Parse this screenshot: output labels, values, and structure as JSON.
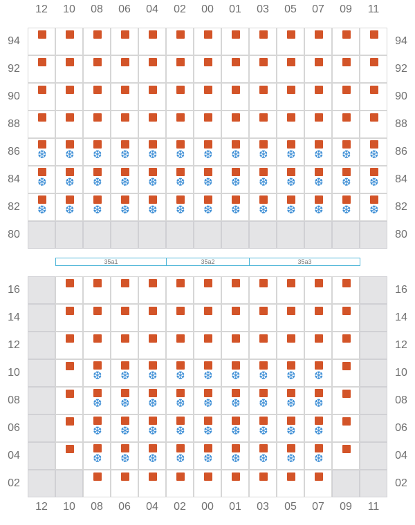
{
  "colors": {
    "seat": "#d35428",
    "snow": "#3e8fd6",
    "disabled_cell": "#e4e4e6",
    "zone_border": "#4fb6d8"
  },
  "icons": {
    "seat": "seat-marker-icon",
    "snow": "snowflake-icon"
  },
  "columns": [
    "12",
    "10",
    "08",
    "06",
    "04",
    "02",
    "00",
    "01",
    "03",
    "05",
    "07",
    "09",
    "11"
  ],
  "top_block": {
    "rows": [
      {
        "label": "94",
        "seats": "1111111111111",
        "snow": "0000000000000",
        "disabled": "0000000000000"
      },
      {
        "label": "92",
        "seats": "1111111111111",
        "snow": "0000000000000",
        "disabled": "0000000000000"
      },
      {
        "label": "90",
        "seats": "1111111111111",
        "snow": "0000000000000",
        "disabled": "0000000000000"
      },
      {
        "label": "88",
        "seats": "1111111111111",
        "snow": "0000000000000",
        "disabled": "0000000000000"
      },
      {
        "label": "86",
        "seats": "1111111111111",
        "snow": "1111111111111",
        "disabled": "0000000000000"
      },
      {
        "label": "84",
        "seats": "1111111111111",
        "snow": "1111111111111",
        "disabled": "0000000000000"
      },
      {
        "label": "82",
        "seats": "1111111111111",
        "snow": "1111111111111",
        "disabled": "0000000000000"
      },
      {
        "label": "80",
        "seats": "0000000000000",
        "snow": "0000000000000",
        "disabled": "1111111111111"
      }
    ]
  },
  "zones": [
    {
      "label": "35a1"
    },
    {
      "label": "35a2"
    },
    {
      "label": "35a3"
    }
  ],
  "bottom_block": {
    "rows": [
      {
        "label": "16",
        "seats": "0111111111110",
        "snow": "0000000000000",
        "disabled": "1000000000001"
      },
      {
        "label": "14",
        "seats": "0111111111110",
        "snow": "0000000000000",
        "disabled": "1000000000001"
      },
      {
        "label": "12",
        "seats": "0111111111110",
        "snow": "0000000000000",
        "disabled": "1000000000001"
      },
      {
        "label": "10",
        "seats": "0111111111110",
        "snow": "0011111111100",
        "disabled": "1000000000001"
      },
      {
        "label": "08",
        "seats": "0111111111110",
        "snow": "0011111111100",
        "disabled": "1000000000001"
      },
      {
        "label": "06",
        "seats": "0111111111110",
        "snow": "0011111111100",
        "disabled": "1000000000001"
      },
      {
        "label": "04",
        "seats": "0111111111110",
        "snow": "0011111111100",
        "disabled": "1000000000001"
      },
      {
        "label": "02",
        "seats": "0011111111100",
        "snow": "0000000000000",
        "disabled": "1100000000011"
      }
    ]
  }
}
